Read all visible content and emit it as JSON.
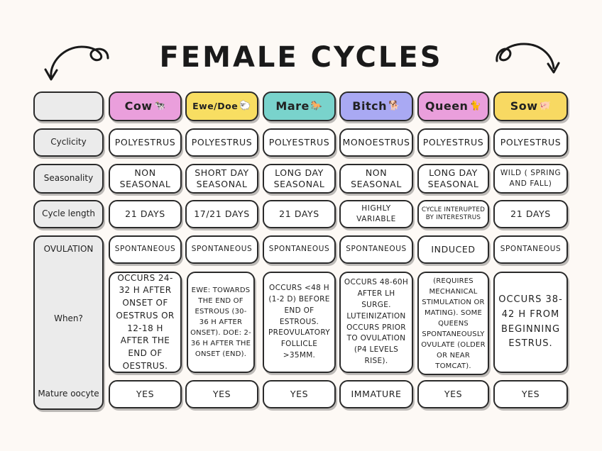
{
  "title": "FEMALE CYCLES",
  "colors": {
    "cow": "#ea9fdc",
    "ewe": "#f8de62",
    "mare": "#79d3cc",
    "bitch": "#a9a9f3",
    "queen": "#ea9fdc",
    "sow": "#f8d962",
    "row_label_bg": "#ebebeb",
    "page_bg": "#fdf9f5"
  },
  "species": [
    {
      "name": "Cow",
      "emoji": "🐄"
    },
    {
      "name": "Ewe/Doe",
      "emoji": "🐑"
    },
    {
      "name": "Mare",
      "emoji": "🐎"
    },
    {
      "name": "Bitch",
      "emoji": "🐕"
    },
    {
      "name": "Queen",
      "emoji": "🐈"
    },
    {
      "name": "Sow",
      "emoji": "🐖"
    }
  ],
  "rows": {
    "cyclicity": {
      "label": "Cyclicity",
      "values": [
        "POLYESTRUS",
        "POLYESTRUS",
        "POLYESTRUS",
        "MONOESTRUS",
        "POLYESTRUS",
        "POLYESTRUS"
      ]
    },
    "seasonality": {
      "label": "Seasonality",
      "values": [
        "NON SEASONAL",
        "SHORT DAY SEASONAL",
        "LONG DAY SEASONAL",
        "NON SEASONAL",
        "LONG DAY SEASONAL",
        "WILD ( SPRING AND FALL)"
      ]
    },
    "cycle_length": {
      "label": "Cycle length",
      "values": [
        "21 DAYS",
        "17/21 DAYS",
        "21 DAYS",
        "HIGHLY VARIABLE",
        "CYCLE INTERUPTED BY INTERESTRUS",
        "21 DAYS"
      ]
    },
    "ovulation": {
      "label": "OVULATION",
      "values": [
        "SPONTANEOUS",
        "SPONTANEOUS",
        "SPONTANEOUS",
        "SPONTANEOUS",
        "INDUCED",
        "SPONTANEOUS"
      ]
    },
    "when": {
      "label": "When?",
      "values": [
        "OCCURS 24-32 H AFTER ONSET OF OESTRUS OR 12-18 H AFTER THE END OF OESTRUS.",
        "EWE: TOWARDS THE END OF ESTROUS (30-36 H AFTER ONSET). DOE: 2-36 H AFTER THE ONSET (END).",
        "OCCURS <48 H (1-2 D) BEFORE END OF ESTROUS. PREOVULATORY FOLLICLE >35MM.",
        "OCCURS 48-60H AFTER LH SURGE. LUTEINIZATION OCCURS PRIOR TO OVULATION (P4 LEVELS RISE).",
        "(REQUIRES MECHANICAL STIMULATION OR MATING). SOME QUEENS SPONTANEOUSLY OVULATE (OLDER OR NEAR TOMCAT).",
        "OCCURS 38-42 H FROM BEGINNING ESTRUS."
      ]
    },
    "mature_oocyte": {
      "label": "Mature oocyte",
      "values": [
        "YES",
        "YES",
        "YES",
        "IMMATURE",
        "YES",
        "YES"
      ]
    }
  }
}
